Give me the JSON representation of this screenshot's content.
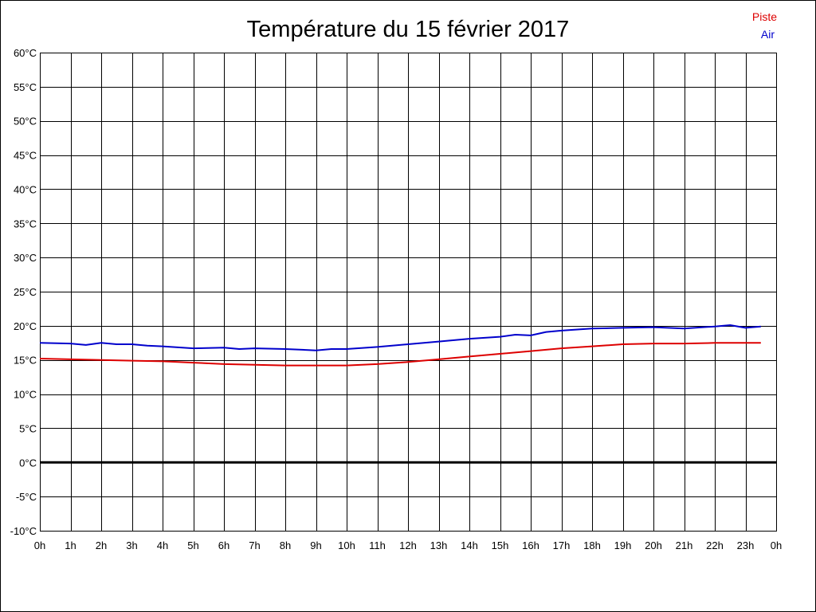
{
  "chart_data": {
    "type": "line",
    "title": "Température du 15 février 2017",
    "xlabel": "",
    "ylabel": "",
    "x_ticks": [
      "0h",
      "1h",
      "2h",
      "3h",
      "4h",
      "5h",
      "6h",
      "7h",
      "8h",
      "9h",
      "10h",
      "11h",
      "12h",
      "13h",
      "14h",
      "15h",
      "16h",
      "17h",
      "18h",
      "19h",
      "20h",
      "21h",
      "22h",
      "23h",
      "0h"
    ],
    "y_ticks": [
      "60°C",
      "55°C",
      "50°C",
      "45°C",
      "40°C",
      "35°C",
      "30°C",
      "25°C",
      "20°C",
      "15°C",
      "10°C",
      "5°C",
      "0°C",
      "-5°C",
      "-10°C"
    ],
    "xlim": [
      0,
      24
    ],
    "ylim": [
      -10,
      60
    ],
    "grid": true,
    "legend_position": "top-right",
    "series": [
      {
        "name": "Piste",
        "color": "#dd0000",
        "x": [
          0,
          1,
          2,
          3,
          4,
          5,
          6,
          7,
          8,
          9,
          10,
          11,
          12,
          13,
          14,
          15,
          16,
          17,
          18,
          19,
          20,
          21,
          22,
          23,
          23.5
        ],
        "values": [
          15.2,
          15.1,
          15.0,
          14.9,
          14.8,
          14.6,
          14.4,
          14.3,
          14.2,
          14.2,
          14.2,
          14.4,
          14.7,
          15.1,
          15.5,
          15.9,
          16.3,
          16.7,
          17.0,
          17.3,
          17.4,
          17.4,
          17.5,
          17.5,
          17.5
        ]
      },
      {
        "name": "Air",
        "color": "#0000cc",
        "x": [
          0,
          1,
          1.5,
          2,
          2.5,
          3,
          3.5,
          4,
          5,
          6,
          6.5,
          7,
          8,
          9,
          9.5,
          10,
          11,
          12,
          13,
          14,
          15,
          15.5,
          16,
          16.5,
          17,
          18,
          19,
          20,
          21,
          22,
          22.5,
          23,
          23.5
        ],
        "values": [
          17.5,
          17.4,
          17.2,
          17.5,
          17.3,
          17.3,
          17.1,
          17.0,
          16.7,
          16.8,
          16.6,
          16.7,
          16.6,
          16.4,
          16.6,
          16.6,
          16.9,
          17.3,
          17.7,
          18.1,
          18.4,
          18.7,
          18.6,
          19.1,
          19.3,
          19.6,
          19.7,
          19.8,
          19.6,
          19.9,
          20.1,
          19.7,
          19.9
        ]
      }
    ]
  }
}
